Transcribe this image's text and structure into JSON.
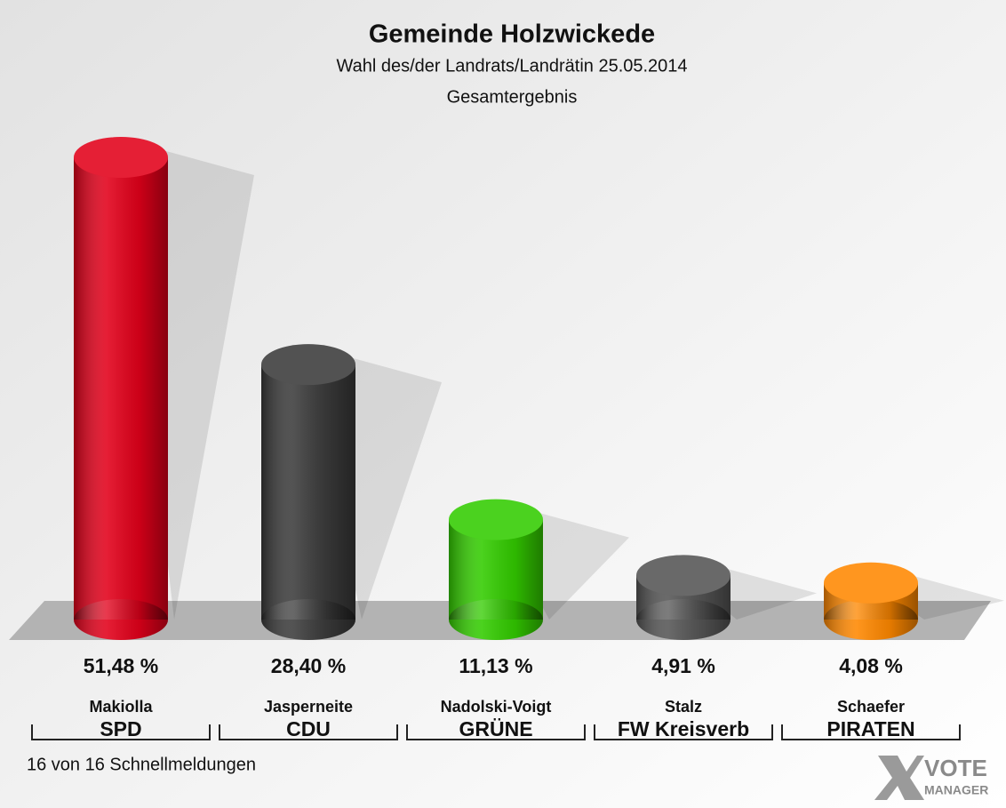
{
  "chart_data": {
    "type": "bar",
    "title": "Gemeinde Holzwickede",
    "subtitle": [
      "Wahl des/der Landrats/Landrätin 25.05.2014",
      "Gesamtergebnis"
    ],
    "categories": [
      "Makiolla",
      "Jasperneite",
      "Nadolski-Voigt",
      "Stalz",
      "Schaefer"
    ],
    "parties": [
      "SPD",
      "CDU",
      "GRÜNE",
      "FW Kreisverb",
      "PIRATEN"
    ],
    "values": [
      51.48,
      28.4,
      11.13,
      4.91,
      4.08
    ],
    "value_labels": [
      "51,48 %",
      "28,40 %",
      "11,13 %",
      "4,91 %",
      "4,08 %"
    ],
    "colors": [
      "#e2001a",
      "#3b3b3b",
      "#33cc00",
      "#555555",
      "#ff8800"
    ],
    "footnote": "16 von 16 Schnellmeldungen",
    "logo": [
      "VOTE",
      "MANAGER"
    ]
  }
}
